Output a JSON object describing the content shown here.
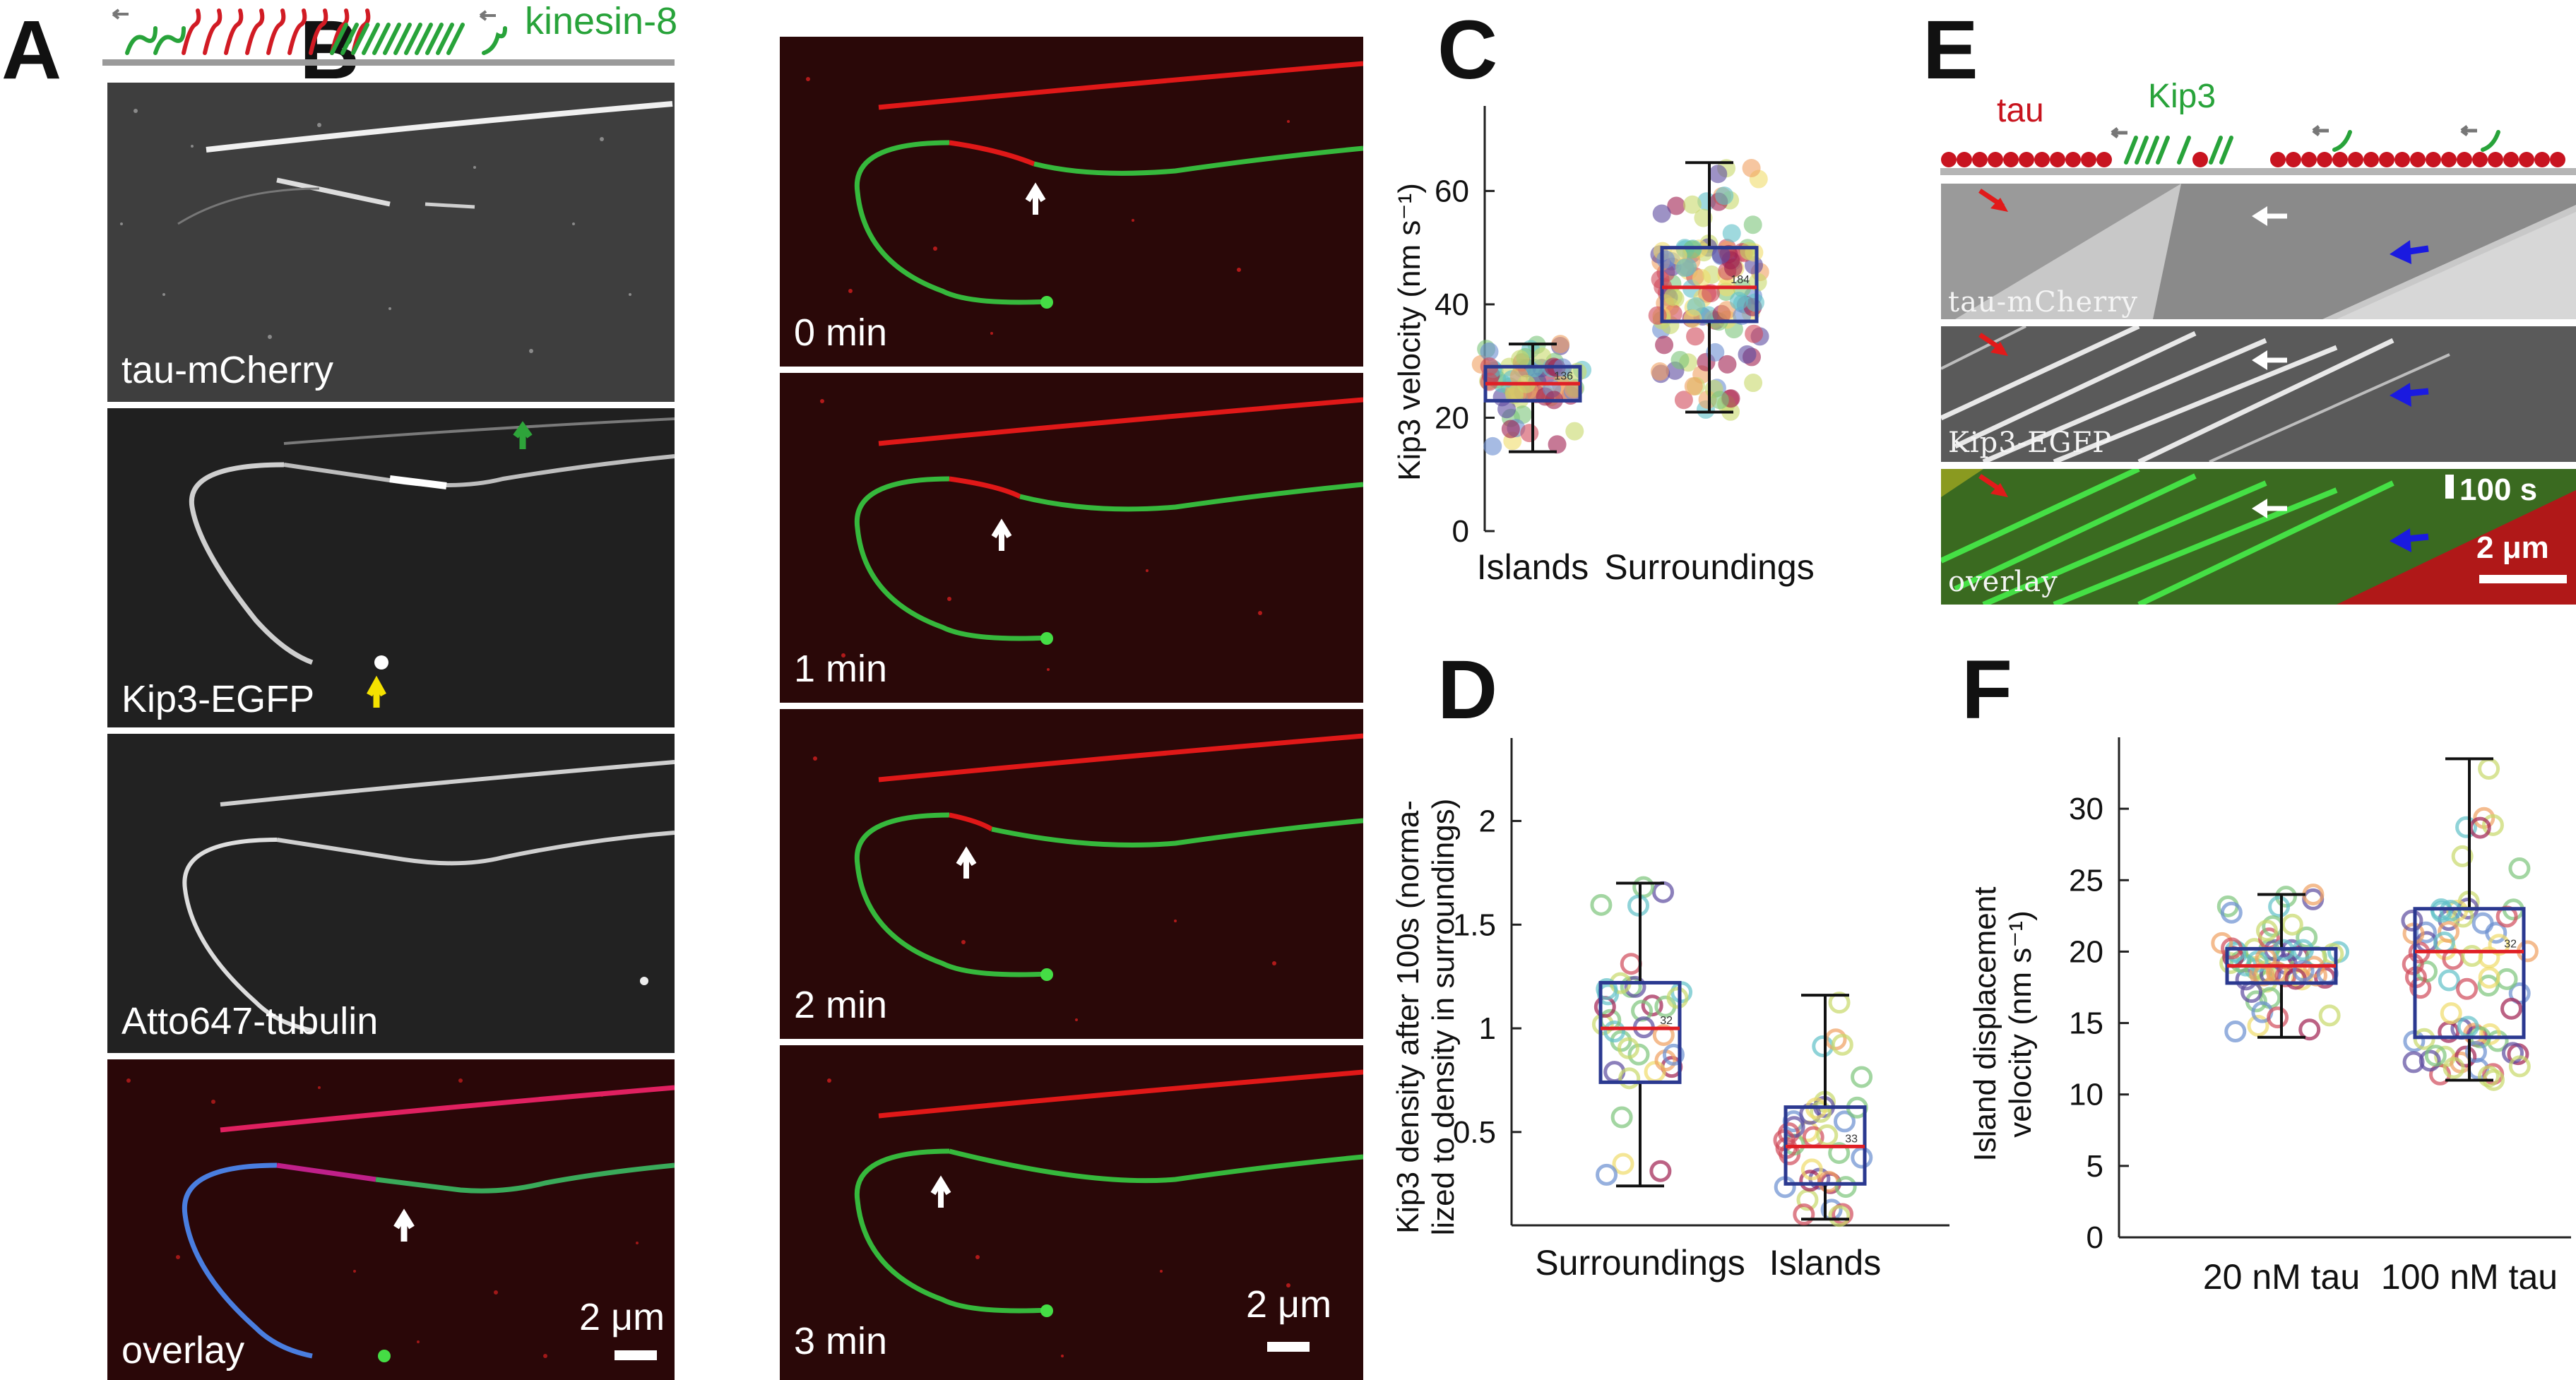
{
  "panels": {
    "A": "A",
    "B": "B",
    "C": "C",
    "D": "D",
    "E": "E",
    "F": "F"
  },
  "panel_a": {
    "schematic_label": "kinesin-8",
    "channels": [
      "tau-mCherry",
      "Kip3-EGFP",
      "Atto647-tubulin",
      "overlay"
    ],
    "scale_bar": "2 μm"
  },
  "panel_b": {
    "times": [
      "0 min",
      "1 min",
      "2 min",
      "3 min"
    ],
    "scale_bar": "2 μm"
  },
  "panel_e": {
    "tau_label": "tau",
    "kip3_label": "Kip3",
    "channels": [
      "tau-mCherry",
      "Kip3-EGFP",
      "overlay"
    ],
    "time_bar": "100 s",
    "scale_bar": "2 μm"
  },
  "colors": {
    "tau": "#d0141d",
    "kip3": "#29b833",
    "box": "#2b3990",
    "median": "#e01f26"
  },
  "chart_data": [
    {
      "type": "box",
      "panel": "C",
      "ylabel": "Kip3 velocity (nm s⁻¹)",
      "categories": [
        "Islands",
        "Surroundings"
      ],
      "yticks": [
        0,
        20,
        40,
        60
      ],
      "ylim": [
        0,
        75
      ],
      "boxes": [
        {
          "category": "Islands",
          "whisker_low": 14,
          "q1": 23,
          "median": 26,
          "q3": 29,
          "whisker_high": 33,
          "n": "136"
        },
        {
          "category": "Surroundings",
          "whisker_low": 21,
          "q1": 37,
          "median": 43,
          "q3": 50,
          "whisker_high": 65,
          "n": "184"
        }
      ]
    },
    {
      "type": "box",
      "panel": "D",
      "ylabel": "Kip3 density after 100s (norma-\nlized to density in surroundings)",
      "categories": [
        "Surroundings",
        "Islands"
      ],
      "yticks": [
        0.5,
        1,
        1.5,
        2
      ],
      "ylim": [
        0.05,
        2.4
      ],
      "boxes": [
        {
          "category": "Surroundings",
          "whisker_low": 0.24,
          "q1": 0.74,
          "median": 1.0,
          "q3": 1.22,
          "whisker_high": 1.7,
          "n": "32"
        },
        {
          "category": "Islands",
          "whisker_low": 0.08,
          "q1": 0.25,
          "median": 0.43,
          "q3": 0.62,
          "whisker_high": 1.16,
          "n": "33"
        }
      ]
    },
    {
      "type": "box",
      "panel": "F",
      "ylabel": "Island displacement\nvelocity (nm s⁻¹)",
      "categories": [
        "20 nM tau",
        "100 nM tau"
      ],
      "yticks": [
        0,
        5,
        10,
        15,
        20,
        25,
        30
      ],
      "ylim": [
        0,
        35
      ],
      "boxes": [
        {
          "category": "20 nM tau",
          "whisker_low": 14,
          "q1": 17.8,
          "median": 19,
          "q3": 20.2,
          "whisker_high": 24,
          "n": ""
        },
        {
          "category": "100 nM tau",
          "whisker_low": 11,
          "q1": 14,
          "median": 20,
          "q3": 23,
          "whisker_high": 33.5,
          "n": "32"
        }
      ]
    }
  ]
}
